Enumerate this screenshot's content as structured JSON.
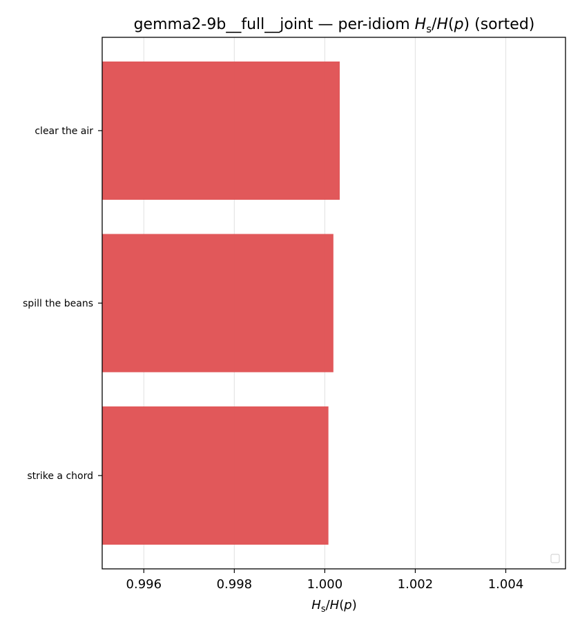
{
  "chart_data": {
    "type": "bar",
    "orientation": "horizontal",
    "title_parts": {
      "prefix": "gemma2-9b__full__joint — per-idiom ",
      "var_main": "H",
      "var_sub": "s",
      "slash": "/",
      "var_main2": "H",
      "paren_open": "(",
      "var_p": "p",
      "paren_close": ")",
      "suffix": " (sorted)"
    },
    "xlabel_parts": {
      "var_main": "H",
      "var_sub": "s",
      "slash": "/",
      "var_main2": "H",
      "paren_open": "(",
      "var_p": "p",
      "paren_close": ")"
    },
    "categories": [
      "clear the air",
      "spill the beans",
      "strike a chord"
    ],
    "values": [
      1.00033,
      1.00019,
      1.00008
    ],
    "xlim": [
      0.99508,
      1.00532
    ],
    "xticks": [
      0.996,
      0.998,
      1.0,
      1.002,
      1.004
    ],
    "xtick_labels": [
      "0.996",
      "0.998",
      "1.000",
      "1.002",
      "1.004"
    ],
    "grid": "x",
    "legend": "lower-right (empty)",
    "bar_color": "#e05355"
  }
}
